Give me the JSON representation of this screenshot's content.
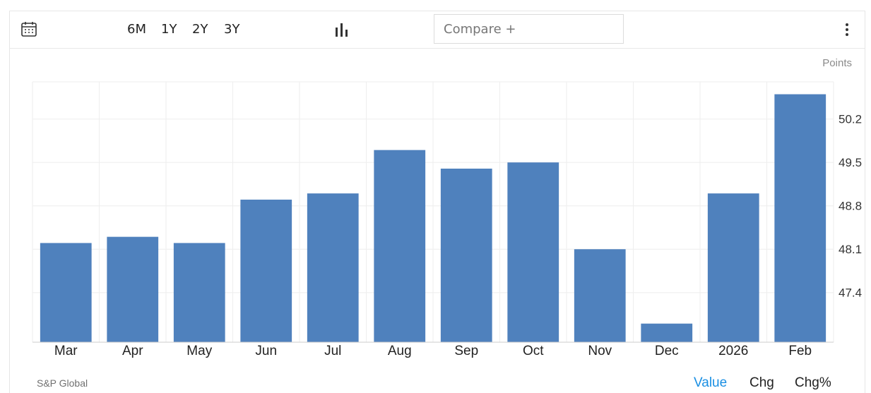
{
  "toolbar": {
    "calendar_icon": "calendar-icon",
    "ranges": [
      "6M",
      "1Y",
      "2Y",
      "3Y"
    ],
    "chart_type_icon": "bar-chart-icon",
    "compare_placeholder": "Compare +",
    "more_icon": "more-vertical-icon"
  },
  "unit_label": "Points",
  "footer": {
    "source": "S&P Global",
    "tabs": [
      "Value",
      "Chg",
      "Chg%"
    ],
    "active_tab": "Value"
  },
  "colors": {
    "bar": "#4f81bd",
    "active_tab": "#1a8fe3",
    "text": "#222222",
    "grid": "#eeeeee"
  },
  "chart_data": {
    "type": "bar",
    "categories": [
      "Mar",
      "Apr",
      "May",
      "Jun",
      "Jul",
      "Aug",
      "Sep",
      "Oct",
      "Nov",
      "Dec",
      "2026",
      "Feb"
    ],
    "values": [
      48.2,
      48.3,
      48.2,
      48.9,
      49.0,
      49.7,
      49.4,
      49.5,
      48.1,
      46.9,
      49.0,
      50.6
    ],
    "y_ticks": [
      "47.4",
      "48.1",
      "48.8",
      "49.5",
      "50.2"
    ],
    "ylim": [
      46.6,
      50.8
    ],
    "grid": true,
    "y_axis_position": "right"
  }
}
